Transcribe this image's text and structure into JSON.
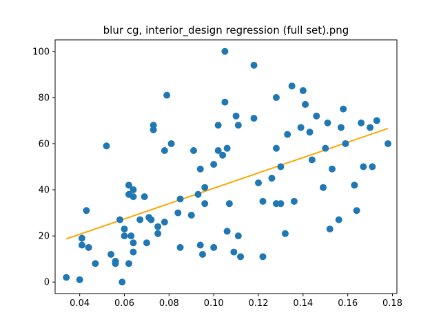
{
  "chart_data": {
    "type": "scatter",
    "title": "blur cg, interior_design regression (full set).png",
    "xlabel": "",
    "ylabel": "",
    "xlim": [
      0.029,
      0.182
    ],
    "ylim": [
      -5,
      105
    ],
    "x_ticks": [
      0.04,
      0.06,
      0.08,
      0.1,
      0.12,
      0.14,
      0.16,
      0.18
    ],
    "x_tick_labels": [
      "0.04",
      "0.06",
      "0.08",
      "0.10",
      "0.12",
      "0.14",
      "0.16",
      "0.18"
    ],
    "y_ticks": [
      0,
      20,
      40,
      60,
      80,
      100
    ],
    "y_tick_labels": [
      "0",
      "20",
      "40",
      "60",
      "80",
      "100"
    ],
    "grid": false,
    "series": [
      {
        "kind": "scatter",
        "color": "#1f77b4",
        "points": [
          [
            0.034,
            2
          ],
          [
            0.04,
            1
          ],
          [
            0.041,
            16
          ],
          [
            0.041,
            19
          ],
          [
            0.043,
            31
          ],
          [
            0.044,
            15
          ],
          [
            0.047,
            8
          ],
          [
            0.052,
            59
          ],
          [
            0.054,
            12
          ],
          [
            0.056,
            8
          ],
          [
            0.056,
            9
          ],
          [
            0.058,
            27
          ],
          [
            0.059,
            0
          ],
          [
            0.06,
            20
          ],
          [
            0.06,
            23
          ],
          [
            0.062,
            8
          ],
          [
            0.062,
            38
          ],
          [
            0.062,
            42
          ],
          [
            0.063,
            20
          ],
          [
            0.064,
            40
          ],
          [
            0.064,
            37
          ],
          [
            0.064,
            13
          ],
          [
            0.064,
            17
          ],
          [
            0.067,
            27
          ],
          [
            0.069,
            37
          ],
          [
            0.07,
            17
          ],
          [
            0.071,
            28
          ],
          [
            0.072,
            27
          ],
          [
            0.073,
            66
          ],
          [
            0.073,
            68
          ],
          [
            0.075,
            21
          ],
          [
            0.075,
            24
          ],
          [
            0.078,
            26
          ],
          [
            0.078,
            57
          ],
          [
            0.079,
            81
          ],
          [
            0.081,
            60
          ],
          [
            0.084,
            30
          ],
          [
            0.085,
            36
          ],
          [
            0.085,
            15
          ],
          [
            0.09,
            29
          ],
          [
            0.091,
            57
          ],
          [
            0.093,
            38
          ],
          [
            0.094,
            49
          ],
          [
            0.094,
            16
          ],
          [
            0.095,
            12
          ],
          [
            0.096,
            34
          ],
          [
            0.096,
            41
          ],
          [
            0.1,
            51
          ],
          [
            0.1,
            15
          ],
          [
            0.102,
            57
          ],
          [
            0.102,
            68
          ],
          [
            0.104,
            55
          ],
          [
            0.105,
            78
          ],
          [
            0.105,
            100
          ],
          [
            0.106,
            22
          ],
          [
            0.106,
            58
          ],
          [
            0.107,
            34
          ],
          [
            0.109,
            13
          ],
          [
            0.11,
            72
          ],
          [
            0.111,
            68
          ],
          [
            0.111,
            20
          ],
          [
            0.112,
            11
          ],
          [
            0.118,
            94
          ],
          [
            0.118,
            71
          ],
          [
            0.12,
            43
          ],
          [
            0.122,
            35
          ],
          [
            0.122,
            11
          ],
          [
            0.126,
            45
          ],
          [
            0.128,
            80
          ],
          [
            0.128,
            58
          ],
          [
            0.128,
            34
          ],
          [
            0.13,
            50
          ],
          [
            0.13,
            34
          ],
          [
            0.132,
            21
          ],
          [
            0.133,
            64
          ],
          [
            0.135,
            85
          ],
          [
            0.136,
            35
          ],
          [
            0.139,
            67
          ],
          [
            0.14,
            83
          ],
          [
            0.141,
            77
          ],
          [
            0.143,
            65
          ],
          [
            0.144,
            53
          ],
          [
            0.146,
            72
          ],
          [
            0.149,
            41
          ],
          [
            0.15,
            58
          ],
          [
            0.151,
            69
          ],
          [
            0.152,
            23
          ],
          [
            0.153,
            49
          ],
          [
            0.156,
            27
          ],
          [
            0.157,
            67
          ],
          [
            0.158,
            75
          ],
          [
            0.159,
            60
          ],
          [
            0.163,
            42
          ],
          [
            0.164,
            31
          ],
          [
            0.166,
            69
          ],
          [
            0.167,
            50
          ],
          [
            0.17,
            67
          ],
          [
            0.171,
            50
          ],
          [
            0.173,
            70
          ],
          [
            0.178,
            60
          ]
        ]
      },
      {
        "kind": "line",
        "color": "#ffa500",
        "points": [
          [
            0.034,
            18.7
          ],
          [
            0.178,
            66.6
          ]
        ]
      }
    ]
  }
}
